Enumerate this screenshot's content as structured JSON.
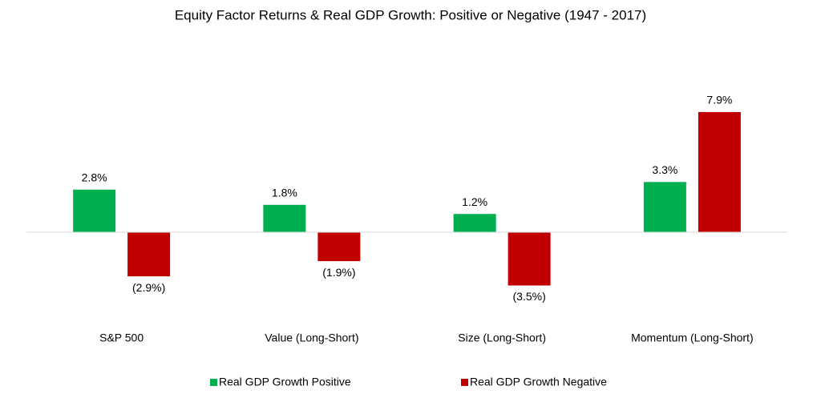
{
  "chart_data": {
    "type": "bar",
    "title": "Equity Factor Returns & Real GDP Growth: Positive or Negative (1947 - 2017)",
    "categories": [
      "S&P 500",
      "Value (Long-Short)",
      "Size (Long-Short)",
      "Momentum (Long-Short)"
    ],
    "series": [
      {
        "name": "Real GDP Growth Positive",
        "color": "#00b050",
        "values": [
          2.8,
          1.8,
          1.2,
          3.3
        ],
        "value_labels": [
          "2.8%",
          "1.8%",
          "1.2%",
          "3.3%"
        ]
      },
      {
        "name": "Real GDP Growth Negative",
        "color": "#c00000",
        "values": [
          -2.9,
          -1.9,
          -3.5,
          7.9
        ],
        "value_labels": [
          "(2.9%)",
          "(1.9%)",
          "(3.5%)",
          "7.9%"
        ]
      }
    ]
  }
}
